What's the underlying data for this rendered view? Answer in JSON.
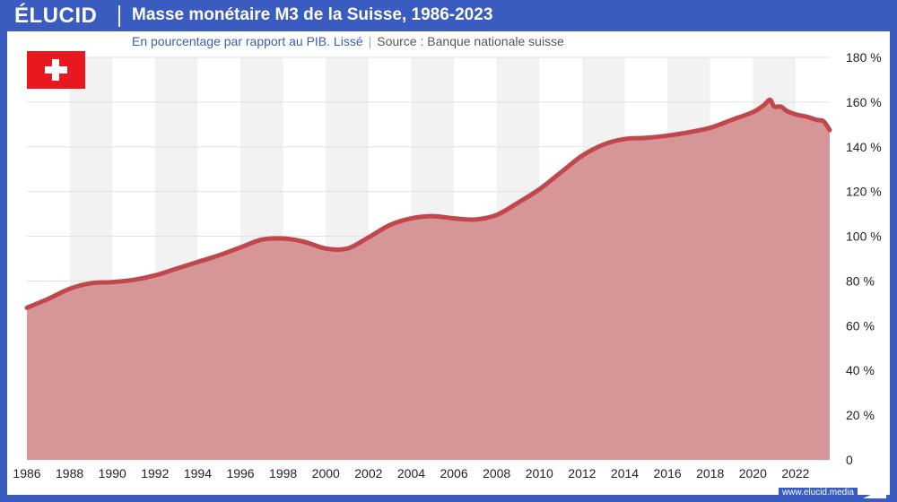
{
  "header": {
    "logo": "ÉLUCID",
    "title": "Masse monétaire M3 de la Suisse, 1986-2023",
    "subtitle": "En pourcentage par rapport au PIB. Lissé",
    "separator": "|",
    "source": "Source : Banque nationale suisse"
  },
  "footer": {
    "url": "www.elucid.media"
  },
  "colors": {
    "brand": "#3a5bbf",
    "line": "#c0474c",
    "area": "#d69698",
    "band": "#f2f2f2",
    "flag_red": "#e8181f"
  },
  "icons": {
    "flag": "swiss-flag-icon"
  },
  "chart_data": {
    "type": "area",
    "title": "Masse monétaire M3 de la Suisse, 1986-2023",
    "xlabel": "",
    "ylabel": "",
    "xlim": [
      1986,
      2023.6
    ],
    "ylim": [
      0,
      180
    ],
    "y_axis_position": "right",
    "grid": true,
    "x_ticks": [
      "1986",
      "1988",
      "1990",
      "1992",
      "1994",
      "1996",
      "1998",
      "2000",
      "2002",
      "2004",
      "2006",
      "2008",
      "2010",
      "2012",
      "2014",
      "2016",
      "2018",
      "2020",
      "2022"
    ],
    "y_ticks": [
      "0",
      "20 %",
      "40 %",
      "60 %",
      "80 %",
      "100 %",
      "120 %",
      "140 %",
      "160 %",
      "180 %"
    ],
    "x": [
      1986,
      1987,
      1988,
      1989,
      1990,
      1991,
      1992,
      1993,
      1994,
      1995,
      1996,
      1997,
      1998,
      1999,
      2000,
      2001,
      2002,
      2003,
      2004,
      2005,
      2006,
      2007,
      2008,
      2009,
      2010,
      2011,
      2012,
      2013,
      2014,
      2015,
      2016,
      2017,
      2018,
      2019,
      2020,
      2020.5,
      2020.8,
      2021,
      2021.3,
      2021.6,
      2022,
      2022.5,
      2023,
      2023.3,
      2023.6
    ],
    "values": [
      68,
      72,
      76.5,
      79,
      79.5,
      80.5,
      82.5,
      85.5,
      88.5,
      91.5,
      95,
      98.5,
      99,
      97.5,
      94.5,
      94.5,
      99.5,
      105,
      108,
      109,
      108,
      107.5,
      109.5,
      115,
      121,
      128.5,
      136,
      141,
      143.5,
      144,
      145,
      146.5,
      148.5,
      152,
      155.5,
      158.5,
      161,
      158,
      158,
      156,
      154.5,
      153.5,
      152,
      151.5,
      147.5
    ]
  }
}
